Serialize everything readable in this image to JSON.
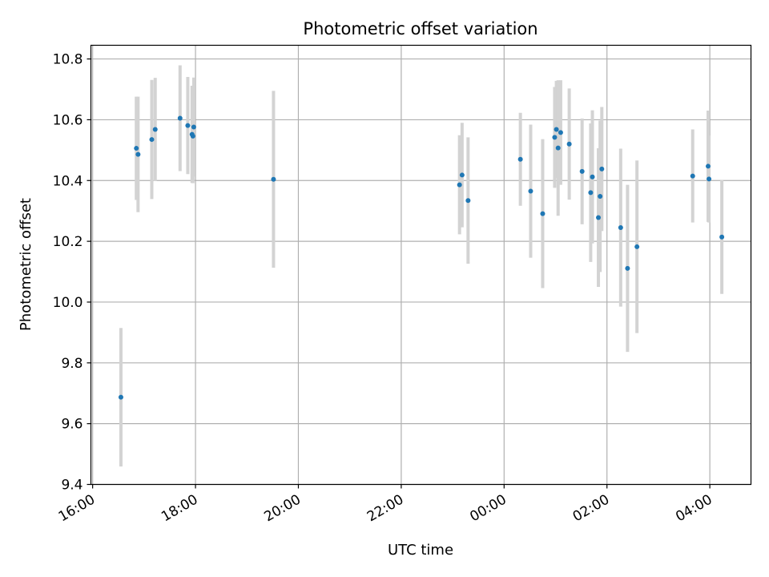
{
  "chart_data": {
    "type": "scatter",
    "title": "Photometric offset variation",
    "xlabel": "UTC time",
    "ylabel": "Photometric offset",
    "x_ticks": [
      "16:00",
      "18:00",
      "20:00",
      "22:00",
      "00:00",
      "02:00",
      "04:00"
    ],
    "y_ticks": [
      "9.4",
      "9.6",
      "9.8",
      "10.0",
      "10.2",
      "10.4",
      "10.6",
      "10.8"
    ],
    "xlim": [
      "2024-01-01T15:58",
      "2024-01-02T04:48"
    ],
    "ylim": [
      9.4,
      10.845
    ],
    "grid": true,
    "colors": {
      "points": "#1f77b4",
      "errorbars": "#d3d3d3",
      "grid": "#b0b0b0"
    },
    "points": [
      {
        "x": "2024-01-01T16:33",
        "y": 9.687,
        "err": 0.228
      },
      {
        "x": "2024-01-01T16:51",
        "y": 10.506,
        "err": 0.17
      },
      {
        "x": "2024-01-01T16:53",
        "y": 10.486,
        "err": 0.19
      },
      {
        "x": "2024-01-01T17:09",
        "y": 10.535,
        "err": 0.196
      },
      {
        "x": "2024-01-01T17:13",
        "y": 10.568,
        "err": 0.17
      },
      {
        "x": "2024-01-01T17:42",
        "y": 10.605,
        "err": 0.174
      },
      {
        "x": "2024-01-01T17:51",
        "y": 10.581,
        "err": 0.16
      },
      {
        "x": "2024-01-01T17:56",
        "y": 10.552,
        "err": 0.16
      },
      {
        "x": "2024-01-01T17:57",
        "y": 10.546,
        "err": 0.155
      },
      {
        "x": "2024-01-01T17:58",
        "y": 10.576,
        "err": 0.163
      },
      {
        "x": "2024-01-01T19:31",
        "y": 10.404,
        "err": 0.291
      },
      {
        "x": "2024-01-01T23:08",
        "y": 10.386,
        "err": 0.163
      },
      {
        "x": "2024-01-01T23:11",
        "y": 10.418,
        "err": 0.172
      },
      {
        "x": "2024-01-01T23:18",
        "y": 10.334,
        "err": 0.208
      },
      {
        "x": "2024-01-02T00:19",
        "y": 10.47,
        "err": 0.153
      },
      {
        "x": "2024-01-02T00:31",
        "y": 10.365,
        "err": 0.219
      },
      {
        "x": "2024-01-02T00:45",
        "y": 10.291,
        "err": 0.245
      },
      {
        "x": "2024-01-02T00:59",
        "y": 10.542,
        "err": 0.166
      },
      {
        "x": "2024-01-02T01:01",
        "y": 10.568,
        "err": 0.16
      },
      {
        "x": "2024-01-02T01:03",
        "y": 10.507,
        "err": 0.223
      },
      {
        "x": "2024-01-02T01:06",
        "y": 10.558,
        "err": 0.172
      },
      {
        "x": "2024-01-02T01:16",
        "y": 10.52,
        "err": 0.183
      },
      {
        "x": "2024-01-02T01:31",
        "y": 10.43,
        "err": 0.174
      },
      {
        "x": "2024-01-02T01:41",
        "y": 10.36,
        "err": 0.228
      },
      {
        "x": "2024-01-02T01:43",
        "y": 10.412,
        "err": 0.219
      },
      {
        "x": "2024-01-02T01:50",
        "y": 10.278,
        "err": 0.228
      },
      {
        "x": "2024-01-02T01:52",
        "y": 10.348,
        "err": 0.249
      },
      {
        "x": "2024-01-02T01:54",
        "y": 10.438,
        "err": 0.204
      },
      {
        "x": "2024-01-02T02:16",
        "y": 10.245,
        "err": 0.26
      },
      {
        "x": "2024-01-02T02:24",
        "y": 10.111,
        "err": 0.275
      },
      {
        "x": "2024-01-02T02:35",
        "y": 10.182,
        "err": 0.284
      },
      {
        "x": "2024-01-02T03:40",
        "y": 10.415,
        "err": 0.153
      },
      {
        "x": "2024-01-02T03:58",
        "y": 10.447,
        "err": 0.183
      },
      {
        "x": "2024-01-02T03:59",
        "y": 10.405,
        "err": 0.143
      },
      {
        "x": "2024-01-02T04:14",
        "y": 10.214,
        "err": 0.187
      }
    ]
  }
}
